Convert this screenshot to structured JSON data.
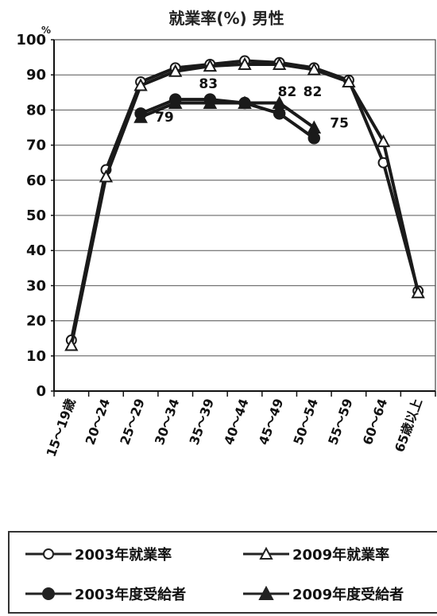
{
  "chart_data": {
    "type": "line",
    "title": "就業率(%) 男性",
    "y_unit": "%",
    "ylim": [
      0,
      100
    ],
    "yticks": [
      0,
      10,
      20,
      30,
      40,
      50,
      60,
      70,
      80,
      90,
      100
    ],
    "categories": [
      "15～19歳",
      "20～24",
      "25～29",
      "30～34",
      "35～39",
      "40～44",
      "45～49",
      "50～54",
      "55～59",
      "60～64",
      "65歳以上"
    ],
    "grid": true,
    "legend_position": "bottom",
    "series": [
      {
        "name": "2003年就業率",
        "marker": "circle-open",
        "values": [
          14.5,
          63,
          88,
          92,
          93,
          94,
          93.5,
          92,
          88.5,
          65,
          28.5
        ]
      },
      {
        "name": "2009年就業率",
        "marker": "triangle-open",
        "values": [
          13,
          61,
          87,
          91,
          92.5,
          93,
          93,
          91.5,
          88,
          71,
          28
        ]
      },
      {
        "name": "2003年度受給者",
        "marker": "circle-filled",
        "values": [
          null,
          null,
          79,
          83,
          83,
          82,
          79,
          72,
          null,
          null,
          null
        ]
      },
      {
        "name": "2009年度受給者",
        "marker": "triangle-filled",
        "values": [
          null,
          null,
          78,
          82,
          82,
          82,
          82,
          75,
          null,
          null,
          null
        ]
      }
    ],
    "annotations": [
      {
        "text": "79",
        "category": "25～29",
        "value": 79
      },
      {
        "text": "83",
        "category": "35～39",
        "value": 83
      },
      {
        "text": "82",
        "category": "45～49",
        "value": 83
      },
      {
        "text": "82",
        "category": "45～49",
        "value": 83
      },
      {
        "text": "75",
        "category": "50～54",
        "value": 75
      }
    ]
  }
}
